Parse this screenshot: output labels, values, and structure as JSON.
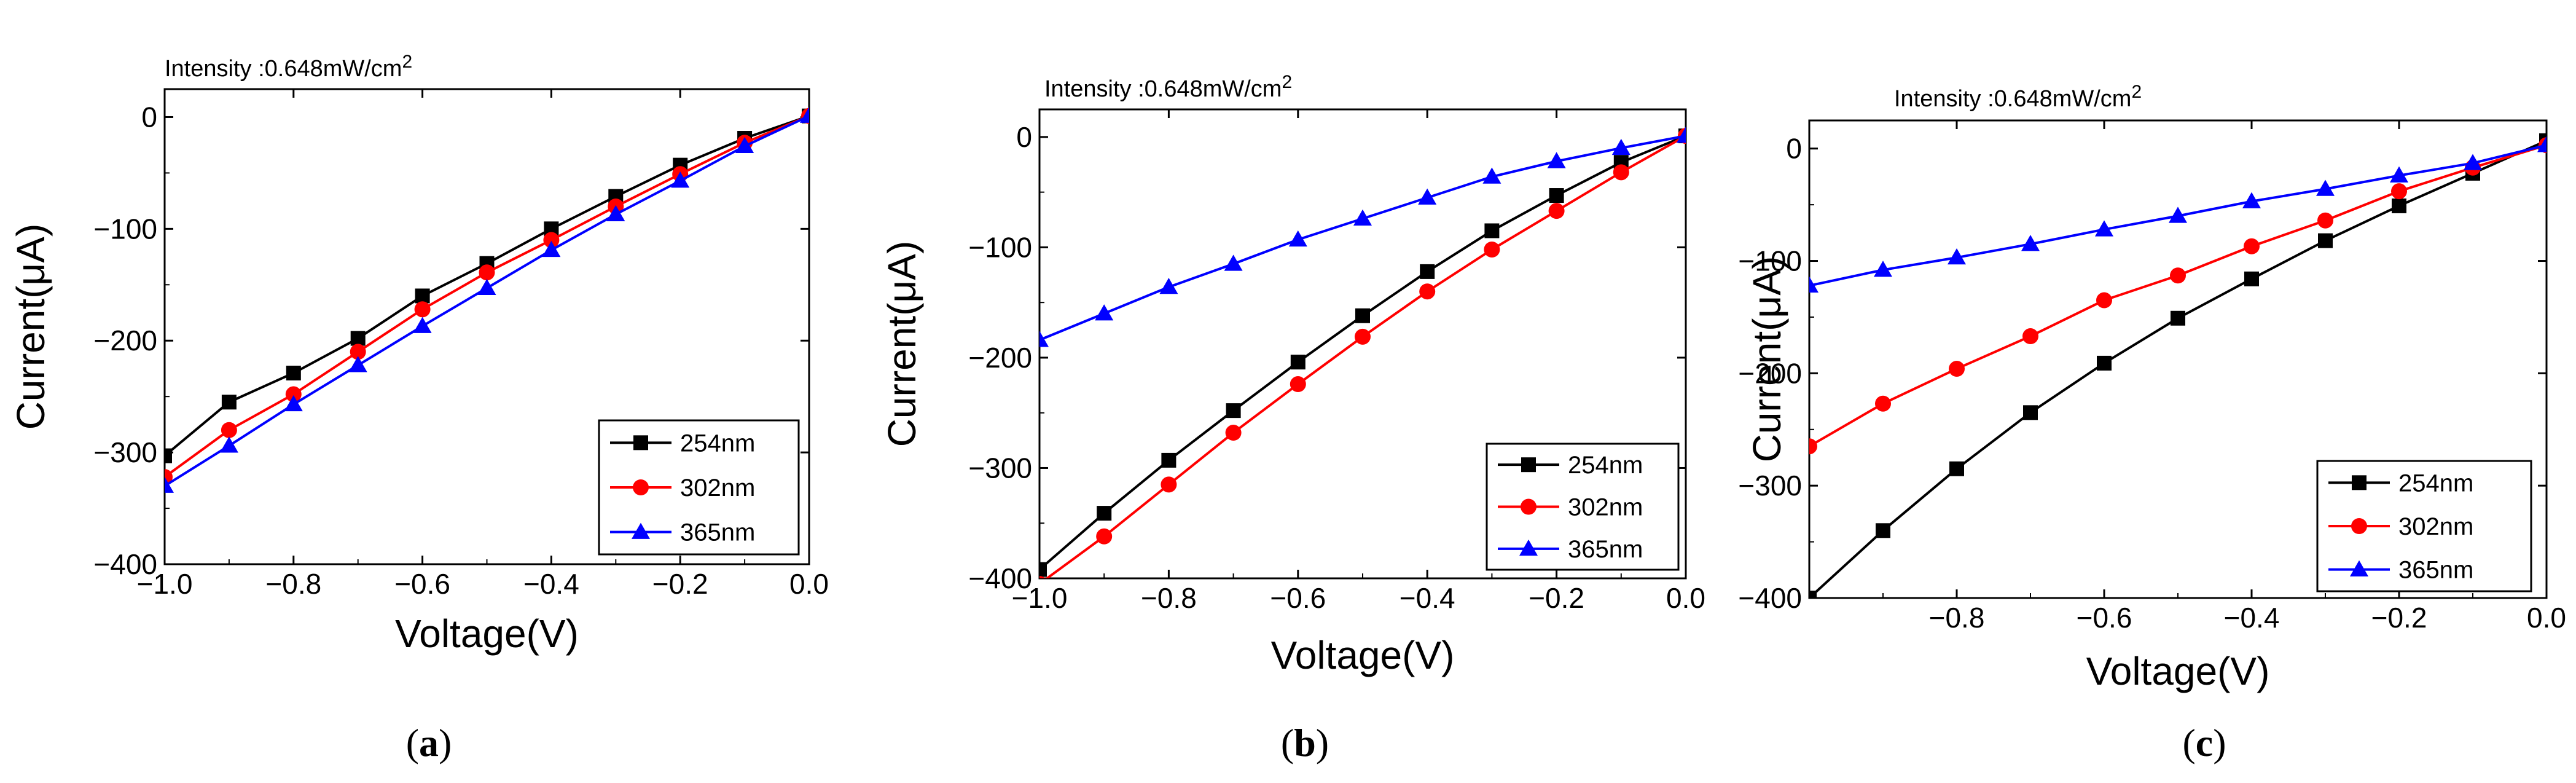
{
  "figure": {
    "caption_open": "(",
    "caption_close": ")"
  },
  "chart_data": [
    {
      "type": "line",
      "panel_label": "a",
      "title": "Intensity :0.648mW/cm",
      "title_superscript": "2",
      "xlabel": "Voltage(V)",
      "ylabel": "Current(μA)",
      "xlim": [
        -1.0,
        0.0
      ],
      "ylim": [
        -400,
        25
      ],
      "xticks": [
        -1.0,
        -0.8,
        -0.6,
        -0.4,
        -0.2,
        0.0
      ],
      "xtick_labels": [
        "−1.0",
        "−0.8",
        "−0.6",
        "−0.4",
        "−0.2",
        "0.0"
      ],
      "yticks": [
        -400,
        -300,
        -200,
        -100,
        0
      ],
      "ytick_labels": [
        "−400",
        "−300",
        "−200",
        "−100",
        "0"
      ],
      "legend_position": "bottom-right",
      "x": [
        -1.0,
        -0.9,
        -0.8,
        -0.7,
        -0.6,
        -0.5,
        -0.4,
        -0.3,
        -0.2,
        -0.1,
        0.0
      ],
      "series": [
        {
          "name": "254nm",
          "color": "#000000",
          "marker": "square",
          "values": [
            -303,
            -255,
            -229,
            -198,
            -160,
            -131,
            -100,
            -71,
            -43,
            -19,
            1
          ]
        },
        {
          "name": "302nm",
          "color": "#ff0000",
          "marker": "circle",
          "values": [
            -322,
            -280,
            -248,
            -210,
            -172,
            -139,
            -110,
            -80,
            -51,
            -23,
            1
          ]
        },
        {
          "name": "365nm",
          "color": "#0000ff",
          "marker": "triangle",
          "values": [
            -330,
            -294,
            -257,
            -222,
            -187,
            -153,
            -119,
            -87,
            -57,
            -26,
            1
          ]
        }
      ]
    },
    {
      "type": "line",
      "panel_label": "b",
      "title": "Intensity :0.648mW/cm",
      "title_superscript": "2",
      "xlabel": "Voltage(V)",
      "ylabel": "Current(μA)",
      "xlim": [
        -1.0,
        0.0
      ],
      "ylim": [
        -400,
        25
      ],
      "xticks": [
        -1.0,
        -0.8,
        -0.6,
        -0.4,
        -0.2,
        0.0
      ],
      "xtick_labels": [
        "−1.0",
        "−0.8",
        "−0.6",
        "−0.4",
        "−0.2",
        "0.0"
      ],
      "yticks": [
        -400,
        -300,
        -200,
        -100,
        0
      ],
      "ytick_labels": [
        "−400",
        "−300",
        "−200",
        "−100",
        "0"
      ],
      "legend_position": "bottom-right",
      "x": [
        -1.0,
        -0.9,
        -0.8,
        -0.7,
        -0.6,
        -0.5,
        -0.4,
        -0.3,
        -0.2,
        -0.1,
        0.0
      ],
      "series": [
        {
          "name": "254nm",
          "color": "#000000",
          "marker": "square",
          "values": [
            -392,
            -341,
            -293,
            -248,
            -204,
            -162,
            -122,
            -85,
            -53,
            -23,
            1
          ]
        },
        {
          "name": "302nm",
          "color": "#ff0000",
          "marker": "circle",
          "values": [
            -405,
            -362,
            -315,
            -268,
            -224,
            -181,
            -140,
            -102,
            -67,
            -32,
            1
          ]
        },
        {
          "name": "365nm",
          "color": "#0000ff",
          "marker": "triangle",
          "values": [
            -184,
            -160,
            -136,
            -115,
            -93,
            -74,
            -55,
            -36,
            -22,
            -10,
            1
          ]
        }
      ]
    },
    {
      "type": "line",
      "panel_label": "c",
      "title": "Intensity :0.648mW/cm",
      "title_superscript": "2",
      "xlabel": "Voltage(V)",
      "ylabel": "Current(μA)",
      "xlim": [
        -1.0,
        0.0
      ],
      "ylim": [
        -400,
        25
      ],
      "xticks": [
        -0.8,
        -0.6,
        -0.4,
        -0.2,
        0.0
      ],
      "xtick_labels": [
        "−0.8",
        "−0.6",
        "−0.4",
        "−0.2",
        "0.0"
      ],
      "yticks": [
        -400,
        -300,
        -200,
        -100,
        0
      ],
      "ytick_labels": [
        "−400",
        "−300",
        "−200",
        "−100",
        "0"
      ],
      "legend_position": "bottom-right",
      "x": [
        -1.0,
        -0.9,
        -0.8,
        -0.7,
        -0.6,
        -0.5,
        -0.4,
        -0.3,
        -0.2,
        -0.1,
        0.0
      ],
      "series": [
        {
          "name": "254nm",
          "color": "#000000",
          "marker": "square",
          "values": [
            -400,
            -340,
            -285,
            -235,
            -191,
            -151,
            -116,
            -82,
            -51,
            -22,
            7
          ]
        },
        {
          "name": "302nm",
          "color": "#ff0000",
          "marker": "circle",
          "values": [
            -265,
            -227,
            -196,
            -167,
            -135,
            -113,
            -87,
            -64,
            -38,
            -17,
            3
          ]
        },
        {
          "name": "365nm",
          "color": "#0000ff",
          "marker": "triangle",
          "values": [
            -122,
            -108,
            -97,
            -85,
            -72,
            -60,
            -47,
            -36,
            -24,
            -13,
            3
          ]
        }
      ]
    }
  ]
}
